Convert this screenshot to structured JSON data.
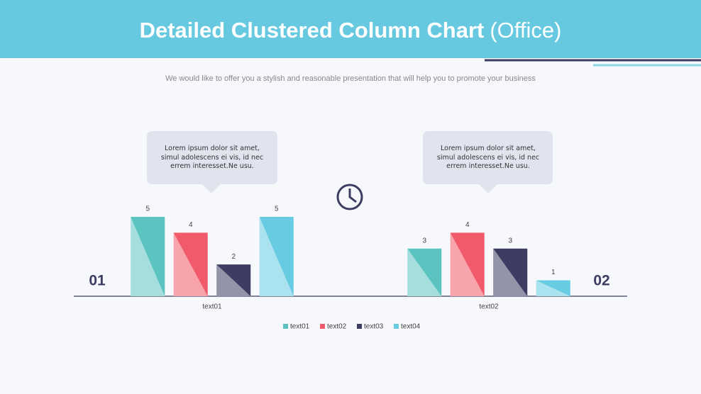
{
  "chart_data": {
    "type": "bar",
    "title": "Detailed Clustered Column Chart",
    "title_suffix": "(Office)",
    "subtitle": "We would like to offer you a stylish and reasonable presentation that will help you to promote your business",
    "categories": [
      "text01",
      "text02"
    ],
    "group_labels": [
      "01",
      "02"
    ],
    "series": [
      {
        "name": "text01",
        "color": "#5bc4c0",
        "values": [
          5,
          3
        ]
      },
      {
        "name": "text02",
        "color": "#f05a6b",
        "values": [
          4,
          4
        ]
      },
      {
        "name": "text03",
        "color": "#3d3d63",
        "values": [
          2,
          3
        ]
      },
      {
        "name": "text04",
        "color": "#67cbe2",
        "values": [
          5,
          1
        ]
      }
    ],
    "annotations": [
      "Lorem ipsum dolor sit amet, simul adolescens ei vis, id nec errem interesset.Ne usu.",
      "Lorem ipsum dolor sit amet, simul adolescens ei vis, id nec errem interesset.Ne usu."
    ]
  }
}
